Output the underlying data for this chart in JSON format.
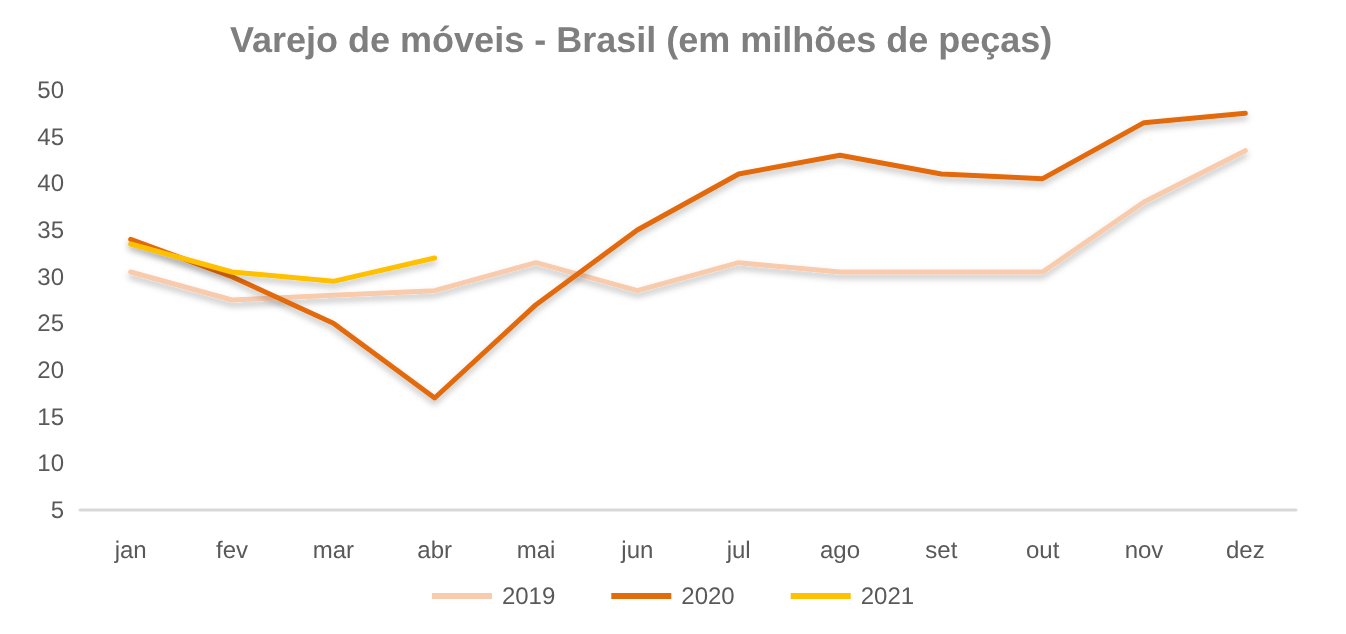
{
  "chart_data": {
    "type": "line",
    "title": "Varejo de móveis - Brasil (em milhões de peças)",
    "categories": [
      "jan",
      "fev",
      "mar",
      "abr",
      "mai",
      "jun",
      "jul",
      "ago",
      "set",
      "out",
      "nov",
      "dez"
    ],
    "series": [
      {
        "name": "2019",
        "color": "#f8cbad",
        "values": [
          30.5,
          27.5,
          28,
          28.5,
          31.5,
          28.5,
          31.5,
          30.5,
          30.5,
          30.5,
          38,
          43.5
        ]
      },
      {
        "name": "2020",
        "color": "#e26b0a",
        "values": [
          34,
          30,
          25,
          17,
          27,
          35,
          41,
          43,
          41,
          40.5,
          46.5,
          47.5
        ]
      },
      {
        "name": "2021",
        "color": "#ffc000",
        "values": [
          33.5,
          30.5,
          29.5,
          32,
          null,
          null,
          null,
          null,
          null,
          null,
          null,
          null
        ]
      }
    ],
    "ylim": [
      5,
      50
    ],
    "yticks": [
      5,
      10,
      15,
      20,
      25,
      30,
      35,
      40,
      45,
      50
    ],
    "grid": false,
    "legend": "bottom",
    "marker": "none",
    "line_style": "solid"
  }
}
